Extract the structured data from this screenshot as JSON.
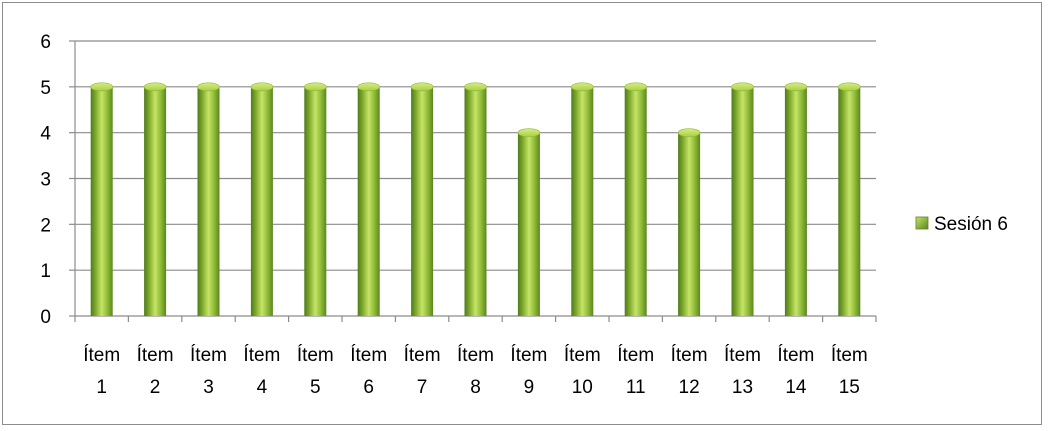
{
  "chart_data": {
    "type": "bar",
    "categories": [
      [
        "Ítem",
        "1"
      ],
      [
        "Ítem",
        "2"
      ],
      [
        "Ítem",
        "3"
      ],
      [
        "Ítem",
        "4"
      ],
      [
        "Ítem",
        "5"
      ],
      [
        "Ítem",
        "6"
      ],
      [
        "Ítem",
        "7"
      ],
      [
        "Ítem",
        "8"
      ],
      [
        "Ítem",
        "9"
      ],
      [
        "Ítem",
        "10"
      ],
      [
        "Ítem",
        "11"
      ],
      [
        "Ítem",
        "12"
      ],
      [
        "Ítem",
        "13"
      ],
      [
        "Ítem",
        "14"
      ],
      [
        "Ítem",
        "15"
      ]
    ],
    "series": [
      {
        "name": "Sesión 6",
        "values": [
          5,
          5,
          5,
          5,
          5,
          5,
          5,
          5,
          4,
          5,
          5,
          4,
          5,
          5,
          5
        ],
        "color": "#8fb734"
      }
    ],
    "title": "",
    "xlabel": "",
    "ylabel": "",
    "ylim": [
      0,
      6
    ],
    "yticks": [
      "0",
      "1",
      "2",
      "3",
      "4",
      "5",
      "6"
    ],
    "grid": true,
    "legend_position": "right"
  }
}
